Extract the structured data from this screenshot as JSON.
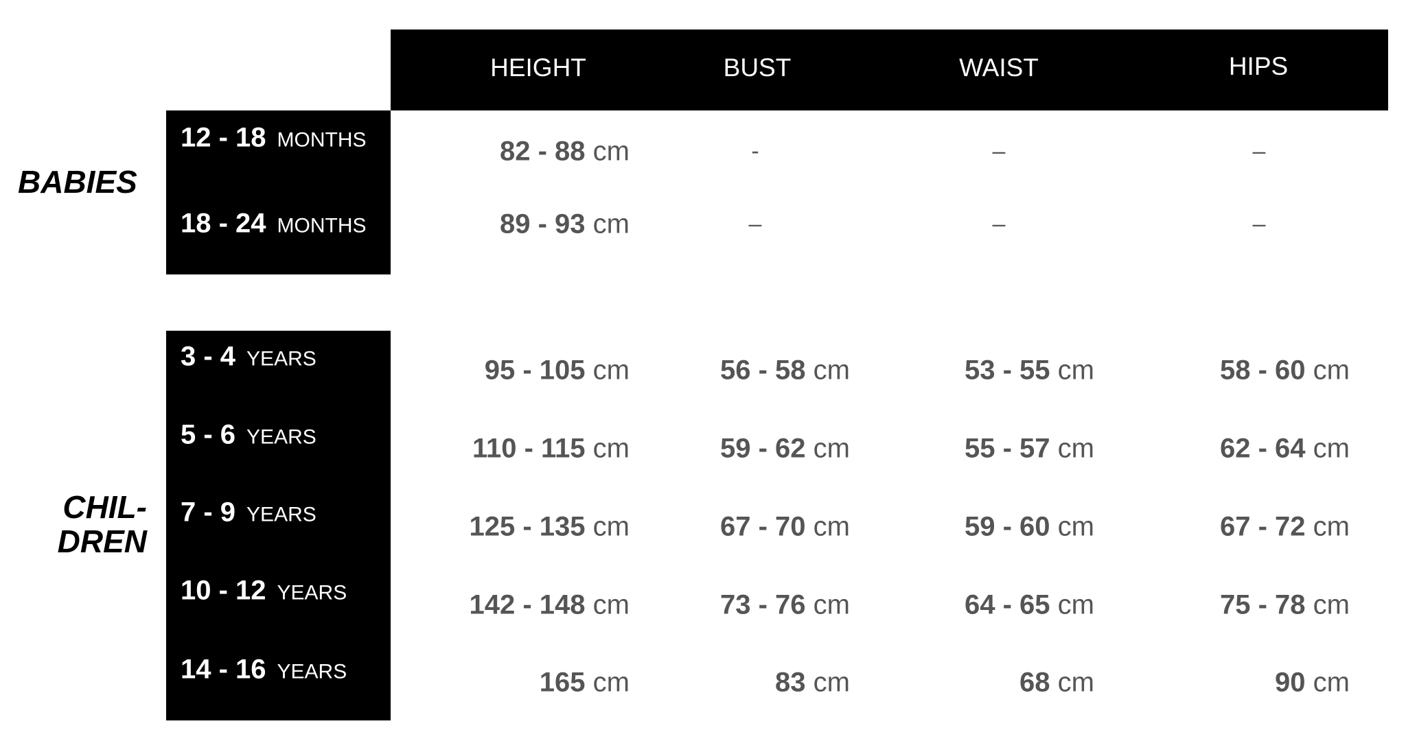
{
  "columns": [
    "HEIGHT",
    "BUST",
    "WAIST",
    "HIPS"
  ],
  "groups": {
    "babies": {
      "label": "BABIES",
      "rows": [
        {
          "age": "12 - 18",
          "unit": "MONTHS",
          "height": {
            "n": "82 - 88",
            "u": "cm"
          },
          "bust": "-",
          "waist": "–",
          "hips": "–"
        },
        {
          "age": "18 - 24",
          "unit": "MONTHS",
          "height": {
            "n": "89 - 93",
            "u": "cm"
          },
          "bust": "–",
          "waist": "–",
          "hips": "–"
        }
      ]
    },
    "children": {
      "label_line1": "CHIL-",
      "label_line2": "DREN",
      "rows": [
        {
          "age": "3 - 4",
          "unit": "YEARS",
          "height": {
            "n": "95 - 105",
            "u": "cm"
          },
          "bust": {
            "n": "56 - 58",
            "u": "cm"
          },
          "waist": {
            "n": "53 - 55",
            "u": "cm"
          },
          "hips": {
            "n": "58 - 60",
            "u": "cm"
          }
        },
        {
          "age": "5 - 6",
          "unit": "YEARS",
          "height": {
            "n": "110 - 115",
            "u": "cm"
          },
          "bust": {
            "n": "59 - 62",
            "u": "cm"
          },
          "waist": {
            "n": "55 - 57",
            "u": "cm"
          },
          "hips": {
            "n": "62 - 64",
            "u": "cm"
          }
        },
        {
          "age": "7 - 9",
          "unit": "YEARS",
          "height": {
            "n": "125 - 135",
            "u": "cm"
          },
          "bust": {
            "n": "67 - 70",
            "u": "cm"
          },
          "waist": {
            "n": "59 - 60",
            "u": "cm"
          },
          "hips": {
            "n": "67 - 72",
            "u": "cm"
          }
        },
        {
          "age": "10 - 12",
          "unit": "YEARS",
          "height": {
            "n": "142 - 148",
            "u": "cm"
          },
          "bust": {
            "n": "73 - 76",
            "u": "cm"
          },
          "waist": {
            "n": "64 - 65",
            "u": "cm"
          },
          "hips": {
            "n": "75 - 78",
            "u": "cm"
          }
        },
        {
          "age": "14 - 16",
          "unit": "YEARS",
          "height": {
            "n": "165",
            "u": "cm"
          },
          "bust": {
            "n": "83",
            "u": "cm"
          },
          "waist": {
            "n": "68",
            "u": "cm"
          },
          "hips": {
            "n": "90",
            "u": "cm"
          }
        }
      ]
    }
  }
}
